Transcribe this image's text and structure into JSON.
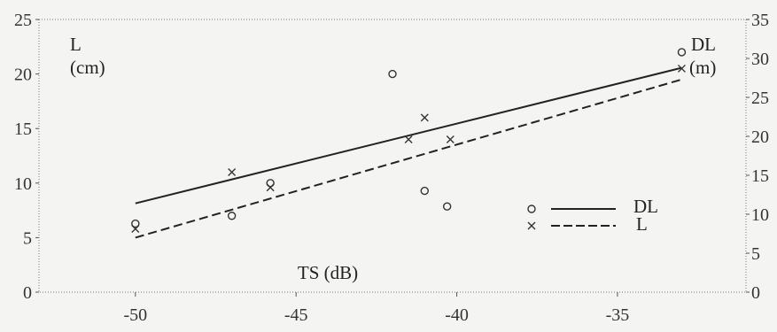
{
  "chart_data": {
    "type": "scatter",
    "xlabel": "TS (dB)",
    "ylabel_left": "L",
    "ylabel_left_unit": "(cm)",
    "ylabel_right": "DL",
    "ylabel_right_unit": "(m)",
    "xlim": [
      -53,
      -31
    ],
    "ylim_left": [
      0,
      25
    ],
    "ylim_right": [
      0,
      35
    ],
    "x_ticks": [
      -50,
      -45,
      -40,
      -35
    ],
    "x_tick_labels": [
      "-50",
      "-45",
      "-40",
      "-35"
    ],
    "y_left_ticks": [
      0,
      5,
      10,
      15,
      20,
      25
    ],
    "y_left_tick_labels": [
      "0",
      "5",
      "10",
      "15",
      "20",
      "25"
    ],
    "y_right_ticks": [
      0,
      5,
      10,
      15,
      20,
      25,
      30,
      35
    ],
    "y_right_tick_labels": [
      "0",
      "5",
      "10",
      "15",
      "20",
      "25",
      "30",
      "35"
    ],
    "grid": false,
    "legend_position": "right",
    "series": [
      {
        "name": "DL",
        "marker": "circle",
        "line_style": "solid",
        "axis": "right",
        "points": [
          {
            "x": -50.0,
            "y": 8.8
          },
          {
            "x": -47.0,
            "y": 9.8
          },
          {
            "x": -45.8,
            "y": 14.0
          },
          {
            "x": -42.0,
            "y": 28.0
          },
          {
            "x": -41.0,
            "y": 13.0
          },
          {
            "x": -40.3,
            "y": 11.0
          },
          {
            "x": -33.0,
            "y": 30.8
          }
        ],
        "fit": {
          "x": [
            -50.0,
            -33.0
          ],
          "y": [
            11.4,
            28.8
          ]
        }
      },
      {
        "name": "L",
        "marker": "cross",
        "line_style": "dashed",
        "axis": "left",
        "points": [
          {
            "x": -50.0,
            "y": 5.8
          },
          {
            "x": -47.0,
            "y": 11.0
          },
          {
            "x": -45.8,
            "y": 9.6
          },
          {
            "x": -41.5,
            "y": 14.0
          },
          {
            "x": -41.0,
            "y": 16.0
          },
          {
            "x": -40.2,
            "y": 14.0
          },
          {
            "x": -33.0,
            "y": 20.5
          }
        ],
        "fit": {
          "x": [
            -50.0,
            -33.0
          ],
          "y": [
            5.0,
            19.5
          ]
        }
      }
    ]
  }
}
